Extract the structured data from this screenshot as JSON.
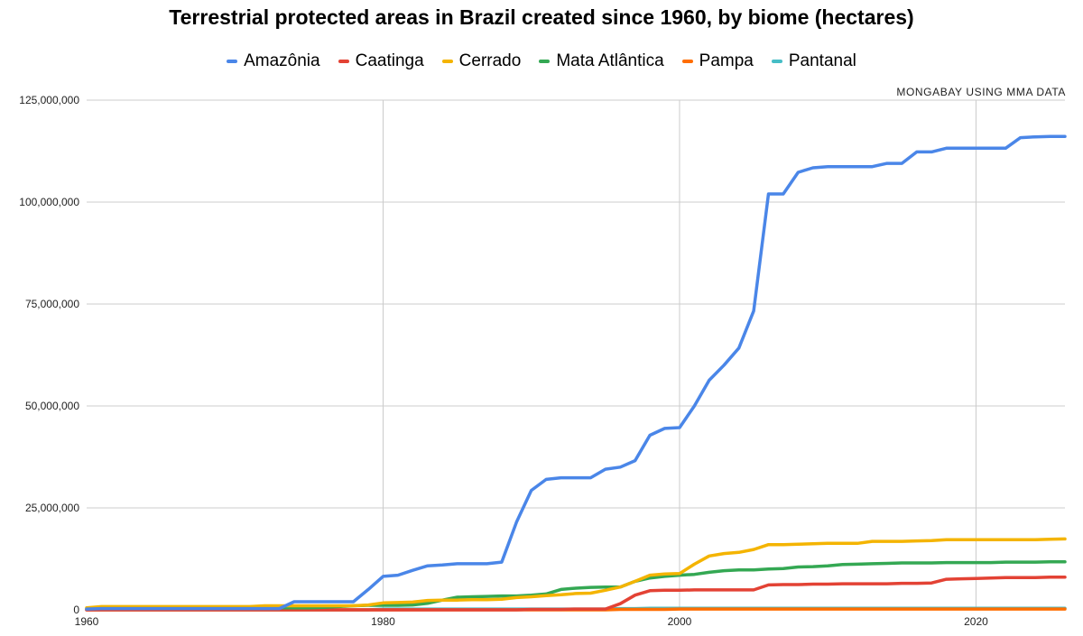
{
  "title": "Terrestrial protected areas in Brazil created since 1960, by biome (hectares)",
  "source_note": "MONGABAY USING MMA DATA",
  "legend": [
    {
      "label": "Amazônia",
      "color": "#4a86e8"
    },
    {
      "label": "Caatinga",
      "color": "#e34234"
    },
    {
      "label": "Cerrado",
      "color": "#f4b400"
    },
    {
      "label": "Mata Atlântica",
      "color": "#34a853"
    },
    {
      "label": "Pampa",
      "color": "#ff6d01"
    },
    {
      "label": "Pantanal",
      "color": "#46bdc6"
    }
  ],
  "chart_data": {
    "type": "line",
    "title": "Terrestrial protected areas in Brazil created since 1960, by biome (hectares)",
    "xlim": [
      1960,
      2026
    ],
    "ylim": [
      0,
      125000000
    ],
    "x_ticks": [
      {
        "value": 1960,
        "label": "1960"
      },
      {
        "value": 1980,
        "label": "1980"
      },
      {
        "value": 2000,
        "label": "2000"
      },
      {
        "value": 2020,
        "label": "2020"
      }
    ],
    "y_ticks": [
      {
        "value": 0,
        "label": "0"
      },
      {
        "value": 25000000,
        "label": "25,000,000"
      },
      {
        "value": 50000000,
        "label": "50,000,000"
      },
      {
        "value": 75000000,
        "label": "75,000,000"
      },
      {
        "value": 100000000,
        "label": "100,000,000"
      },
      {
        "value": 125000000,
        "label": "125,000,000"
      }
    ],
    "grid": true,
    "legend_position": "top",
    "x": [
      1960,
      1961,
      1962,
      1963,
      1964,
      1965,
      1966,
      1967,
      1968,
      1969,
      1970,
      1971,
      1972,
      1973,
      1974,
      1975,
      1976,
      1977,
      1978,
      1979,
      1980,
      1981,
      1982,
      1983,
      1984,
      1985,
      1986,
      1987,
      1988,
      1989,
      1990,
      1991,
      1992,
      1993,
      1994,
      1995,
      1996,
      1997,
      1998,
      1999,
      2000,
      2001,
      2002,
      2003,
      2004,
      2005,
      2006,
      2007,
      2008,
      2009,
      2010,
      2011,
      2012,
      2013,
      2014,
      2015,
      2016,
      2017,
      2018,
      2019,
      2020,
      2021,
      2022,
      2023,
      2024,
      2025,
      2026
    ],
    "series": [
      {
        "name": "Amazônia",
        "color": "#4a86e8",
        "values": [
          200000,
          300000,
          300000,
          300000,
          300000,
          300000,
          300000,
          300000,
          300000,
          300000,
          300000,
          300000,
          300000,
          300000,
          2000000,
          2000000,
          2000000,
          2000000,
          2000000,
          5000000,
          8200000,
          8500000,
          9700000,
          10800000,
          11000000,
          11300000,
          11300000,
          11300000,
          11700000,
          21500000,
          29300000,
          32000000,
          32400000,
          32400000,
          32400000,
          34500000,
          35000000,
          36600000,
          42800000,
          44500000,
          44700000,
          50000000,
          56300000,
          60000000,
          64200000,
          73300000,
          102000000,
          102000000,
          107300000,
          108400000,
          108700000,
          108700000,
          108700000,
          108700000,
          109500000,
          109500000,
          112300000,
          112300000,
          113200000,
          113200000,
          113200000,
          113200000,
          113200000,
          115800000,
          116000000,
          116100000,
          116100000
        ]
      },
      {
        "name": "Caatinga",
        "color": "#e34234",
        "values": [
          0,
          0,
          0,
          0,
          0,
          0,
          0,
          0,
          0,
          0,
          0,
          0,
          0,
          0,
          0,
          0,
          0,
          0,
          0,
          0,
          0,
          0,
          0,
          0,
          0,
          0,
          0,
          0,
          0,
          0,
          100000,
          100000,
          100000,
          200000,
          200000,
          200000,
          1500000,
          3600000,
          4700000,
          4800000,
          4800000,
          4900000,
          4900000,
          4900000,
          4900000,
          4900000,
          6100000,
          6200000,
          6200000,
          6300000,
          6300000,
          6400000,
          6400000,
          6400000,
          6400000,
          6500000,
          6500000,
          6600000,
          7500000,
          7600000,
          7700000,
          7800000,
          7900000,
          7900000,
          7900000,
          8000000,
          8000000
        ]
      },
      {
        "name": "Cerrado",
        "color": "#f4b400",
        "values": [
          500000,
          800000,
          800000,
          800000,
          800000,
          800000,
          800000,
          800000,
          800000,
          800000,
          800000,
          800000,
          1000000,
          1000000,
          1000000,
          1000000,
          1000000,
          1000000,
          1000000,
          1200000,
          1700000,
          1800000,
          1900000,
          2300000,
          2400000,
          2400000,
          2500000,
          2500000,
          2600000,
          3000000,
          3200000,
          3500000,
          3700000,
          4000000,
          4100000,
          4800000,
          5600000,
          7000000,
          8500000,
          8800000,
          8900000,
          11200000,
          13200000,
          13800000,
          14100000,
          14800000,
          16000000,
          16000000,
          16100000,
          16200000,
          16300000,
          16300000,
          16300000,
          16800000,
          16800000,
          16800000,
          16900000,
          17000000,
          17200000,
          17200000,
          17200000,
          17200000,
          17200000,
          17200000,
          17200000,
          17300000,
          17400000
        ]
      },
      {
        "name": "Mata Atlântica",
        "color": "#34a853",
        "values": [
          300000,
          400000,
          400000,
          400000,
          400000,
          400000,
          400000,
          400000,
          400000,
          400000,
          400000,
          500000,
          500000,
          500000,
          500000,
          500000,
          600000,
          800000,
          1000000,
          1100000,
          1100000,
          1100000,
          1200000,
          1600000,
          2400000,
          3100000,
          3200000,
          3300000,
          3400000,
          3400000,
          3600000,
          3900000,
          5000000,
          5300000,
          5500000,
          5600000,
          5600000,
          7000000,
          7800000,
          8200000,
          8500000,
          8700000,
          9200000,
          9600000,
          9800000,
          9800000,
          10000000,
          10100000,
          10500000,
          10600000,
          10800000,
          11100000,
          11200000,
          11300000,
          11400000,
          11500000,
          11500000,
          11500000,
          11600000,
          11600000,
          11600000,
          11600000,
          11700000,
          11700000,
          11700000,
          11800000,
          11800000
        ]
      },
      {
        "name": "Pampa",
        "color": "#ff6d01",
        "values": [
          0,
          0,
          0,
          0,
          0,
          0,
          0,
          0,
          0,
          0,
          0,
          0,
          0,
          0,
          0,
          0,
          0,
          0,
          0,
          0,
          0,
          0,
          0,
          0,
          0,
          0,
          0,
          0,
          0,
          0,
          0,
          0,
          0,
          0,
          0,
          0,
          100000,
          100000,
          100000,
          100000,
          200000,
          200000,
          200000,
          200000,
          200000,
          200000,
          200000,
          200000,
          200000,
          200000,
          200000,
          200000,
          200000,
          200000,
          200000,
          200000,
          200000,
          200000,
          200000,
          200000,
          200000,
          200000,
          200000,
          200000,
          200000,
          200000,
          200000
        ]
      },
      {
        "name": "Pantanal",
        "color": "#46bdc6",
        "values": [
          0,
          0,
          0,
          0,
          0,
          0,
          0,
          0,
          0,
          0,
          0,
          0,
          0,
          0,
          0,
          0,
          0,
          0,
          0,
          0,
          200000,
          200000,
          200000,
          200000,
          200000,
          200000,
          200000,
          200000,
          200000,
          200000,
          200000,
          200000,
          200000,
          200000,
          200000,
          200000,
          300000,
          300000,
          400000,
          400000,
          400000,
          400000,
          400000,
          400000,
          400000,
          400000,
          400000,
          400000,
          400000,
          400000,
          400000,
          400000,
          400000,
          400000,
          400000,
          400000,
          400000,
          400000,
          400000,
          400000,
          400000,
          400000,
          400000,
          400000,
          400000,
          400000,
          400000
        ]
      }
    ]
  }
}
